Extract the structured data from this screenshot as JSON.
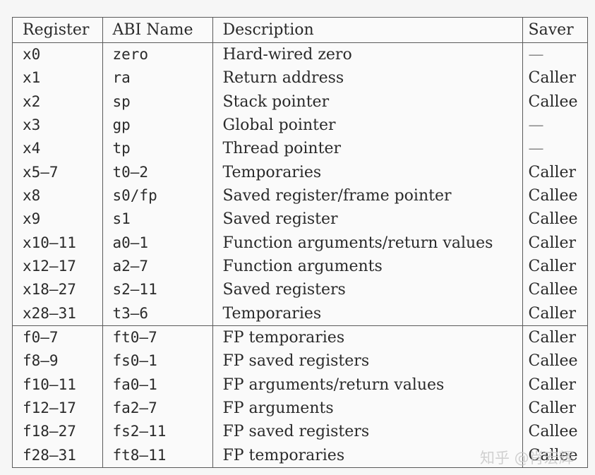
{
  "table": {
    "headers": [
      "Register",
      "ABI Name",
      "Description",
      "Saver"
    ],
    "integer_rows": [
      {
        "register": "x0",
        "abi": "zero",
        "description": "Hard-wired zero",
        "saver": "—"
      },
      {
        "register": "x1",
        "abi": "ra",
        "description": "Return address",
        "saver": "Caller"
      },
      {
        "register": "x2",
        "abi": "sp",
        "description": "Stack pointer",
        "saver": "Callee"
      },
      {
        "register": "x3",
        "abi": "gp",
        "description": "Global pointer",
        "saver": "—"
      },
      {
        "register": "x4",
        "abi": "tp",
        "description": "Thread pointer",
        "saver": "—"
      },
      {
        "register": "x5–7",
        "abi": "t0–2",
        "description": "Temporaries",
        "saver": "Caller"
      },
      {
        "register": "x8",
        "abi": "s0/fp",
        "description": "Saved register/frame pointer",
        "saver": "Callee"
      },
      {
        "register": "x9",
        "abi": "s1",
        "description": "Saved register",
        "saver": "Callee"
      },
      {
        "register": "x10–11",
        "abi": "a0–1",
        "description": "Function arguments/return values",
        "saver": "Caller"
      },
      {
        "register": "x12–17",
        "abi": "a2–7",
        "description": "Function arguments",
        "saver": "Caller"
      },
      {
        "register": "x18–27",
        "abi": "s2–11",
        "description": "Saved registers",
        "saver": "Callee"
      },
      {
        "register": "x28–31",
        "abi": "t3–6",
        "description": "Temporaries",
        "saver": "Caller"
      }
    ],
    "fp_rows": [
      {
        "register": "f0–7",
        "abi": "ft0–7",
        "description": "FP temporaries",
        "saver": "Caller"
      },
      {
        "register": "f8–9",
        "abi": "fs0–1",
        "description": "FP saved registers",
        "saver": "Callee"
      },
      {
        "register": "f10–11",
        "abi": "fa0–1",
        "description": "FP arguments/return values",
        "saver": "Caller"
      },
      {
        "register": "f12–17",
        "abi": "fa2–7",
        "description": "FP arguments",
        "saver": "Caller"
      },
      {
        "register": "f18–27",
        "abi": "fs2–11",
        "description": "FP saved registers",
        "saver": "Callee"
      },
      {
        "register": "f28–31",
        "abi": "ft8–11",
        "description": "FP temporaries",
        "saver": "Callee"
      }
    ]
  },
  "watermark": "知乎 @肖宏辉"
}
